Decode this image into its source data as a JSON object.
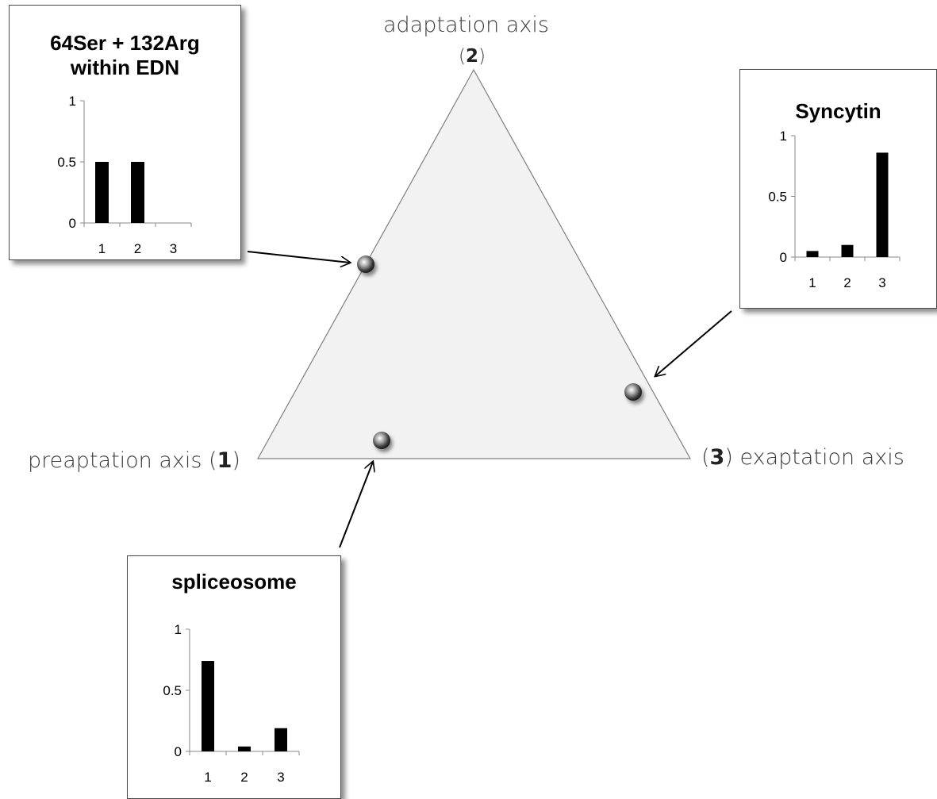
{
  "axes": {
    "top": {
      "label": "adaptation axis",
      "index": "2"
    },
    "left": {
      "label": "preaptation axis",
      "index": "1"
    },
    "right": {
      "label": "exaptation axis",
      "index": "3"
    }
  },
  "colors": {
    "triangle_fill": "#f2f2f2",
    "triangle_stroke": "#7f7f7f",
    "bars": "#000000",
    "panel_border": "#4a4a4a"
  },
  "points": [
    {
      "name": "edn-point",
      "links_to": "64Ser + 132Arg within EDN"
    },
    {
      "name": "syncytin-point",
      "links_to": "Syncytin"
    },
    {
      "name": "spliceosome-point",
      "links_to": "spliceosome"
    }
  ],
  "chart_data": [
    {
      "type": "bar",
      "title": "64Ser + 132Arg within EDN",
      "title_lines": [
        "64Ser + 132Arg",
        "within EDN"
      ],
      "categories": [
        "1",
        "2",
        "3"
      ],
      "values": [
        0.5,
        0.5,
        0
      ],
      "yticks": [
        "0",
        "0.5",
        "1"
      ],
      "ylim": [
        0,
        1
      ]
    },
    {
      "type": "bar",
      "title": "Syncytin",
      "title_lines": [
        "Syncytin"
      ],
      "categories": [
        "1",
        "2",
        "3"
      ],
      "values": [
        0.05,
        0.1,
        0.86
      ],
      "yticks": [
        "0",
        "0.5",
        "1"
      ],
      "ylim": [
        0,
        1
      ]
    },
    {
      "type": "bar",
      "title": "spliceosome",
      "title_lines": [
        "spliceosome"
      ],
      "categories": [
        "1",
        "2",
        "3"
      ],
      "values": [
        0.74,
        0.04,
        0.19
      ],
      "yticks": [
        "0",
        "0.5",
        "1"
      ],
      "ylim": [
        0,
        1
      ]
    }
  ]
}
